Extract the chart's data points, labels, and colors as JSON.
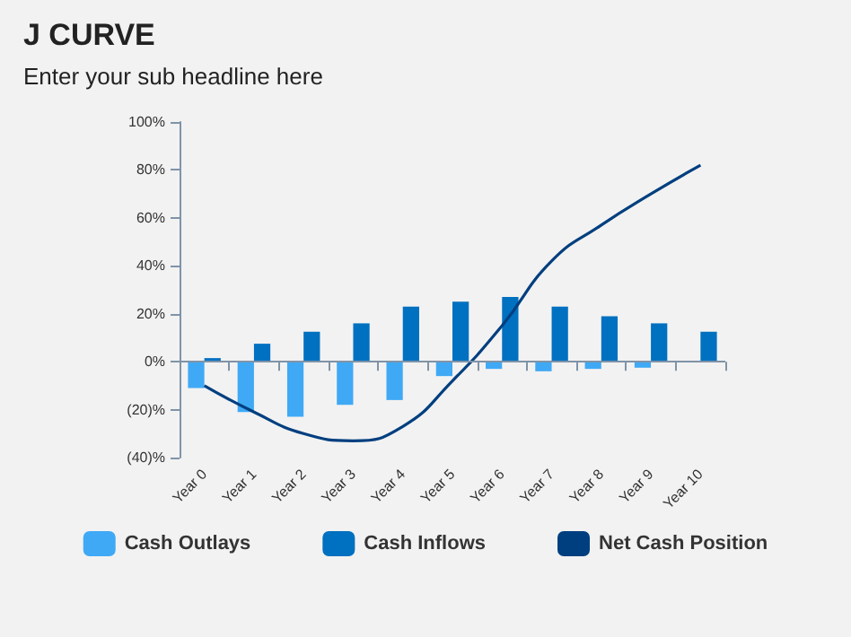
{
  "chart_data": {
    "type": "bar",
    "title": "J CURVE",
    "subtitle": "Enter your sub headline here",
    "categories": [
      "Year 0",
      "Year 1",
      "Year 2",
      "Year 3",
      "Year 4",
      "Year 5",
      "Year 6",
      "Year 7",
      "Year 8",
      "Year 9",
      "Year 10"
    ],
    "series": [
      {
        "name": "Cash Outlays",
        "color": "#3fa9f5",
        "values": [
          -11,
          -21,
          -23,
          -18,
          -16,
          -6,
          -3,
          -4,
          -3,
          -2.5,
          null
        ]
      },
      {
        "name": "Cash Inflows",
        "color": "#0070c0",
        "values": [
          1.5,
          7.5,
          12.5,
          16,
          23,
          25,
          27,
          23,
          19,
          16,
          12.5
        ]
      },
      {
        "name": "Net Cash Position",
        "type": "line",
        "color": "#003f7f",
        "values": [
          -10,
          -21,
          -30,
          -33,
          -27,
          -8,
          15,
          42,
          57,
          70,
          82
        ]
      }
    ],
    "ylim": [
      -40,
      100
    ],
    "yticks": [
      {
        "value": -40,
        "label": "(40)%"
      },
      {
        "value": -20,
        "label": "(20)%"
      },
      {
        "value": 0,
        "label": "0%"
      },
      {
        "value": 20,
        "label": "20%"
      },
      {
        "value": 40,
        "label": "40%"
      },
      {
        "value": 60,
        "label": "60%"
      },
      {
        "value": 80,
        "label": "80%"
      },
      {
        "value": 100,
        "label": "100%"
      }
    ],
    "ref_lines": [
      {
        "axis": "y",
        "value": 0,
        "color": "#7f93a8"
      }
    ],
    "grid": false,
    "legend": "bottom",
    "marker": "none"
  }
}
